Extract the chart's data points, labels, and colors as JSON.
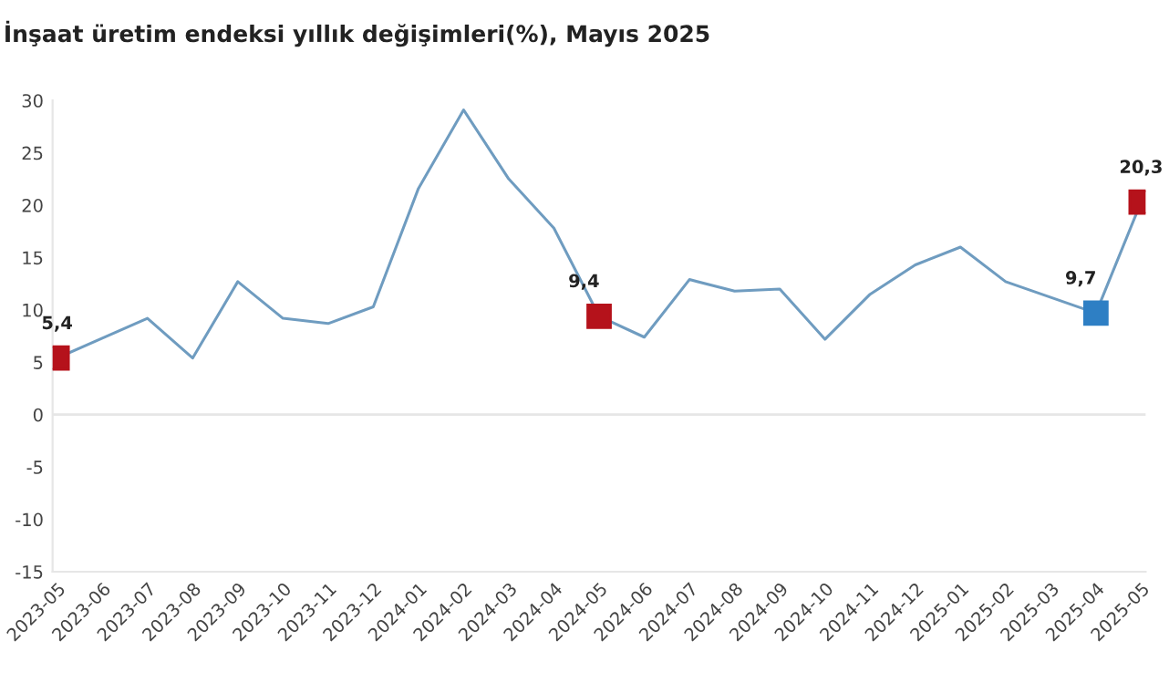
{
  "chart_data": {
    "type": "line",
    "title": "İnşaat üretim endeksi yıllık değişimleri(%), Mayıs 2025",
    "categories": [
      "2023-05",
      "2023-06",
      "2023-07",
      "2023-08",
      "2023-09",
      "2023-10",
      "2023-11",
      "2023-12",
      "2024-01",
      "2024-02",
      "2024-03",
      "2024-04",
      "2024-05",
      "2024-06",
      "2024-07",
      "2024-08",
      "2024-09",
      "2024-10",
      "2024-11",
      "2024-12",
      "2025-01",
      "2025-02",
      "2025-03",
      "2025-04",
      "2025-05"
    ],
    "series": [
      {
        "color": "#6f9cc0",
        "values": [
          5.4,
          7.3,
          9.2,
          5.4,
          12.7,
          9.2,
          8.7,
          10.3,
          21.6,
          29.1,
          22.5,
          17.8,
          9.4,
          7.4,
          12.9,
          11.8,
          12.0,
          7.2,
          11.5,
          14.3,
          16.0,
          12.7,
          11.2,
          9.7,
          20.3
        ],
        "colors": [
          "#b5121b",
          null,
          null,
          null,
          null,
          null,
          null,
          null,
          null,
          null,
          null,
          null,
          "#b5121b",
          null,
          null,
          null,
          null,
          null,
          null,
          null,
          null,
          null,
          null,
          "#2e7fc4",
          "#b5121b"
        ],
        "value_labels": [
          "5,4",
          null,
          null,
          null,
          null,
          null,
          null,
          null,
          null,
          null,
          null,
          null,
          "9,4",
          null,
          null,
          null,
          null,
          null,
          null,
          null,
          null,
          null,
          null,
          "9,7",
          "20,3"
        ]
      }
    ],
    "ylim": [
      -15,
      30
    ],
    "yticks": [
      -15,
      -10,
      -5,
      0,
      5,
      10,
      15,
      20,
      25,
      30
    ],
    "grid": false,
    "legend": false,
    "ref_lines": [
      {
        "axis": "y",
        "value": 0,
        "color": "#e6e6e6"
      }
    ]
  }
}
